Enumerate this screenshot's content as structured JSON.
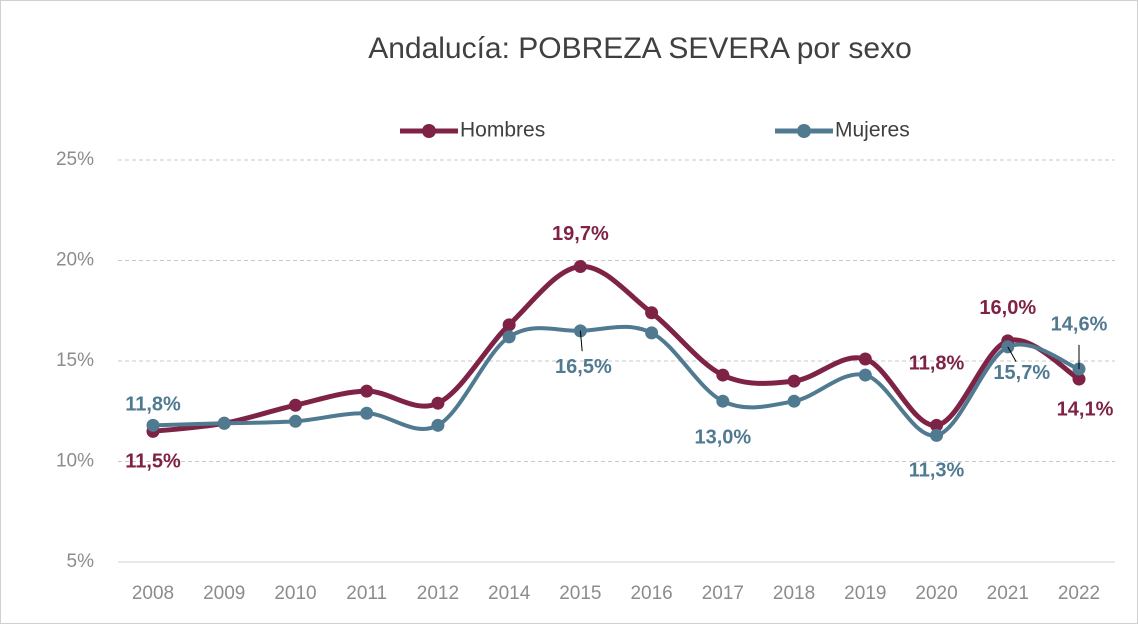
{
  "chart_data": {
    "type": "line",
    "title": "Andalucía: POBREZA SEVERA por sexo",
    "categories": [
      "2008",
      "2009",
      "2010",
      "2011",
      "2012",
      "2014",
      "2015",
      "2016",
      "2017",
      "2018",
      "2019",
      "2020",
      "2021",
      "2022"
    ],
    "series": [
      {
        "name": "Hombres",
        "color": "#7f2346",
        "values": [
          11.5,
          11.9,
          12.8,
          13.5,
          12.9,
          16.8,
          19.7,
          17.4,
          14.3,
          14.0,
          15.1,
          11.8,
          16.0,
          14.1
        ],
        "value_labels": [
          "11,5%",
          null,
          null,
          null,
          null,
          null,
          "19,7%",
          null,
          null,
          null,
          null,
          "11,8%",
          "16,0%",
          "14,1%"
        ]
      },
      {
        "name": "Mujeres",
        "color": "#507a90",
        "values": [
          11.8,
          11.9,
          12.0,
          12.4,
          11.8,
          16.2,
          16.5,
          16.4,
          13.0,
          13.0,
          14.3,
          11.3,
          15.7,
          14.6
        ],
        "value_labels": [
          "11,8%",
          null,
          null,
          null,
          null,
          null,
          "16,5%",
          null,
          "13,0%",
          null,
          null,
          "11,3%",
          "15,7%",
          "14,6%"
        ]
      }
    ],
    "ylim": [
      5,
      25
    ],
    "yticks": [
      {
        "value": 5,
        "label": "5%"
      },
      {
        "value": 10,
        "label": "10%"
      },
      {
        "value": 15,
        "label": "15%"
      },
      {
        "value": 20,
        "label": "20%"
      },
      {
        "value": 25,
        "label": "25%"
      }
    ],
    "grid": true,
    "legend": "top"
  }
}
